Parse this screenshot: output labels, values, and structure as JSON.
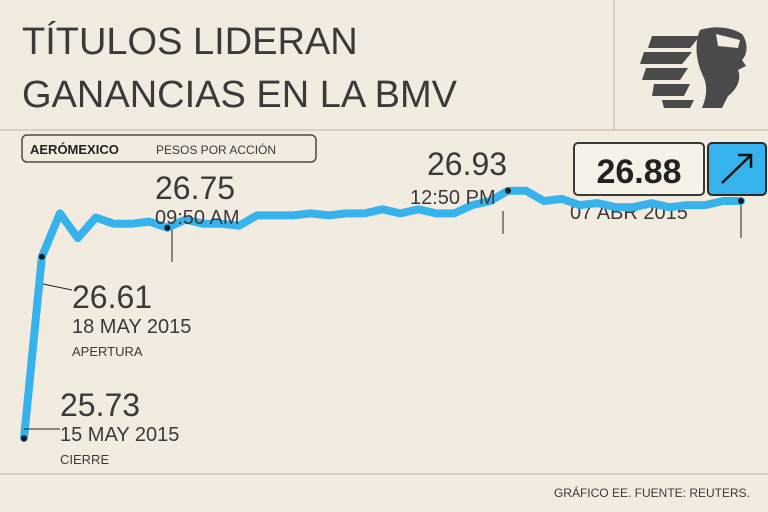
{
  "header": {
    "title_line1": "TÍTULOS LIDERAN",
    "title_line2": "GANANCIAS EN LA BMV",
    "logo_icon": "aeromexico-logo-icon"
  },
  "legend": {
    "brand": "AERÓMEXICO",
    "unit": "PESOS POR ACCIÓN"
  },
  "current": {
    "value": "26.88",
    "date": "07 ABR 2015",
    "arrow_icon": "arrow-up-right-icon"
  },
  "annotations": [
    {
      "value": "25.73",
      "line2": "15 MAY 2015",
      "line3": "CIERRE"
    },
    {
      "value": "26.61",
      "line2": "18 MAY 2015",
      "line3": "APERTURA"
    },
    {
      "value": "26.75",
      "line2": "09:50 AM",
      "line3": ""
    },
    {
      "value": "26.93",
      "line2": "12:50 PM",
      "line3": ""
    }
  ],
  "footer": {
    "source": "GRÁFICO EE. FUENTE: REUTERS."
  },
  "colors": {
    "background": "#f2ebdf",
    "line": "#36b3ec",
    "text": "#3a3a3a",
    "rule": "#cfc6b8"
  },
  "chart_data": {
    "type": "line",
    "series": [
      {
        "x": [
          0,
          1,
          2,
          3,
          4,
          5,
          6,
          7,
          8,
          9,
          10,
          11,
          12,
          13,
          14,
          15,
          16,
          17,
          18,
          19,
          20,
          21,
          22,
          23,
          24,
          25,
          26,
          27,
          28,
          29,
          30,
          31,
          32,
          33,
          34,
          35,
          36,
          37,
          38,
          39,
          40
        ],
        "values": [
          25.73,
          26.61,
          26.82,
          26.7,
          26.8,
          26.77,
          26.77,
          26.78,
          26.75,
          26.79,
          26.77,
          26.77,
          26.76,
          26.81,
          26.81,
          26.81,
          26.82,
          26.81,
          26.82,
          26.82,
          26.84,
          26.82,
          26.84,
          26.82,
          26.82,
          26.86,
          26.88,
          26.93,
          26.93,
          26.88,
          26.89,
          26.86,
          26.87,
          26.85,
          26.85,
          26.87,
          26.85,
          26.86,
          26.86,
          26.88,
          26.88
        ]
      }
    ],
    "ylim": [
      25.6,
      27.2
    ],
    "grid": false
  }
}
